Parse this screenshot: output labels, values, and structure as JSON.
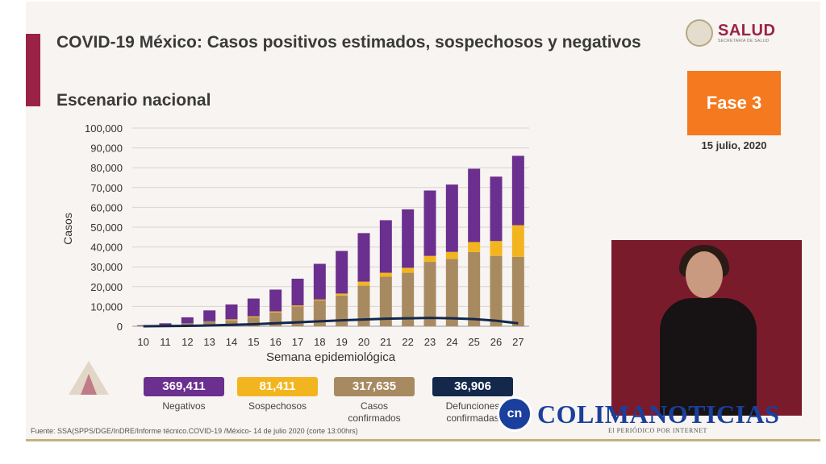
{
  "header": {
    "title": "COVID-19 México: Casos positivos estimados, sospechosos y negativos",
    "subtitle": "Escenario nacional",
    "logo_text": "SALUD",
    "logo_small": "SECRETARÍA DE SALUD",
    "phase": "Fase 3",
    "date": "15 julio, 2020"
  },
  "colors": {
    "negativos": "#6b2f8f",
    "sospechosos": "#f3b51f",
    "confirmados": "#a88a61",
    "defunciones": "#14284b",
    "accent": "#9b2247",
    "phase": "#f57a1f"
  },
  "chart_data": {
    "type": "bar",
    "stacked": true,
    "xlabel": "Semana epidemiológica",
    "ylabel": "Casos",
    "ylim": [
      0,
      100000
    ],
    "yticks": [
      0,
      10000,
      20000,
      30000,
      40000,
      50000,
      60000,
      70000,
      80000,
      90000,
      100000
    ],
    "ytick_labels": [
      "0",
      "10,000",
      "20,000",
      "30,000",
      "40,000",
      "50,000",
      "60,000",
      "70,000",
      "80,000",
      "90,000",
      "100,000"
    ],
    "categories": [
      "10",
      "11",
      "12",
      "13",
      "14",
      "15",
      "16",
      "17",
      "18",
      "19",
      "20",
      "21",
      "22",
      "23",
      "24",
      "25",
      "26",
      "27"
    ],
    "grid": true,
    "series": [
      {
        "name": "Casos confirmados",
        "values": [
          200,
          500,
          1500,
          2500,
          3000,
          4500,
          7000,
          10000,
          13000,
          15500,
          20500,
          25000,
          27000,
          32500,
          34000,
          37500,
          35500,
          35000
        ]
      },
      {
        "name": "Sospechosos",
        "values": [
          0,
          0,
          0,
          0,
          500,
          500,
          500,
          500,
          500,
          1000,
          2000,
          2000,
          2500,
          3000,
          3500,
          5000,
          7500,
          16000
        ]
      },
      {
        "name": "Negativos",
        "values": [
          300,
          1000,
          3000,
          5500,
          7500,
          9000,
          11000,
          13500,
          18000,
          21500,
          24500,
          26500,
          29500,
          33000,
          34000,
          37000,
          32500,
          35000
        ]
      },
      {
        "name": "Defunciones confirmadas",
        "type": "line",
        "values": [
          0,
          100,
          200,
          400,
          700,
          1000,
          1500,
          2000,
          2500,
          3000,
          3400,
          3800,
          4000,
          4200,
          4000,
          3600,
          2800,
          1500
        ]
      }
    ]
  },
  "legend": [
    {
      "value": "369,411",
      "label": "Negativos",
      "color": "#6b2f8f"
    },
    {
      "value": "81,411",
      "label": "Sospechosos",
      "color": "#f3b51f"
    },
    {
      "value": "317,635",
      "label": "Casos confirmados",
      "color": "#a88a61"
    },
    {
      "value": "36,906",
      "label": "Defunciones confirmadas",
      "color": "#14284b"
    }
  ],
  "footer": {
    "source": "Fuente: SSA(SPPS/DGE/InDRE/Informe técnico.COVID-19 /México- 14 de julio 2020 (corte 13:00hrs)"
  },
  "watermark": {
    "circle_text": "cn",
    "name": "COLIMANOTICIAS",
    "tagline": "El PERIÓDICO POR INTERNET"
  }
}
